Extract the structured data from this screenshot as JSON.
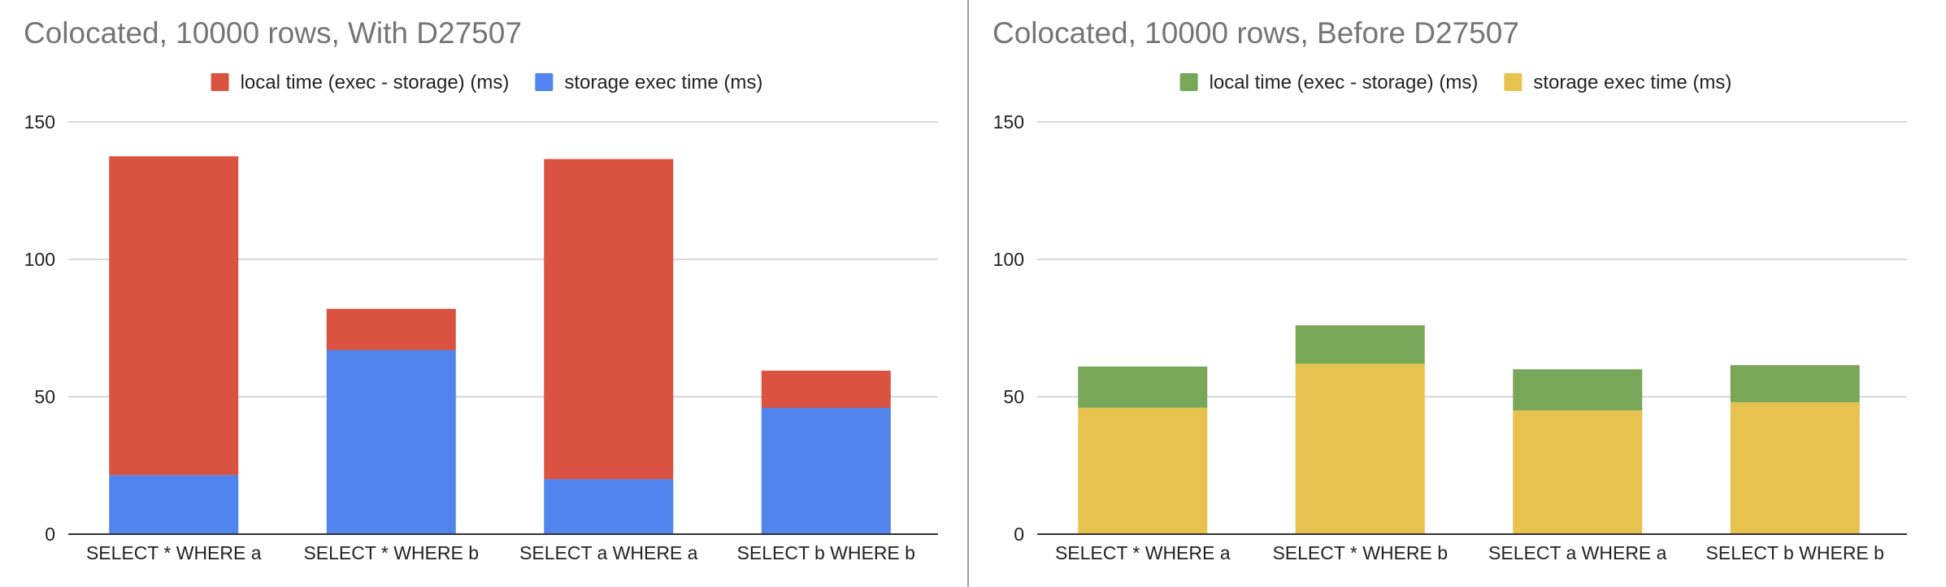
{
  "chart_data": [
    {
      "type": "bar",
      "stacked": true,
      "title": "Colocated, 10000 rows, With D27507",
      "categories": [
        "SELECT * WHERE a",
        "SELECT * WHERE b",
        "SELECT a WHERE a",
        "SELECT b WHERE b"
      ],
      "series": [
        {
          "name": "storage exec time (ms)",
          "color": "#5284ed",
          "values": [
            21.5,
            67,
            20,
            46
          ]
        },
        {
          "name": "local time (exec - storage) (ms)",
          "color": "#da5240",
          "values": [
            116,
            15,
            116.5,
            13.5
          ]
        }
      ],
      "legend_order": [
        1,
        0
      ],
      "ylim": [
        0,
        150
      ],
      "yticks": [
        0,
        50,
        100,
        150
      ],
      "grid": true,
      "legend_position": "top"
    },
    {
      "type": "bar",
      "stacked": true,
      "title": "Colocated, 10000 rows, Before D27507",
      "categories": [
        "SELECT * WHERE a",
        "SELECT * WHERE b",
        "SELECT a WHERE a",
        "SELECT b WHERE b"
      ],
      "series": [
        {
          "name": "storage exec time (ms)",
          "color": "#e8c24f",
          "values": [
            46,
            62,
            45,
            48
          ]
        },
        {
          "name": "local time (exec - storage) (ms)",
          "color": "#78a75a",
          "values": [
            15,
            14,
            15,
            13.5
          ]
        }
      ],
      "legend_order": [
        1,
        0
      ],
      "ylim": [
        0,
        150
      ],
      "yticks": [
        0,
        50,
        100,
        150
      ],
      "grid": true,
      "legend_position": "top"
    }
  ]
}
